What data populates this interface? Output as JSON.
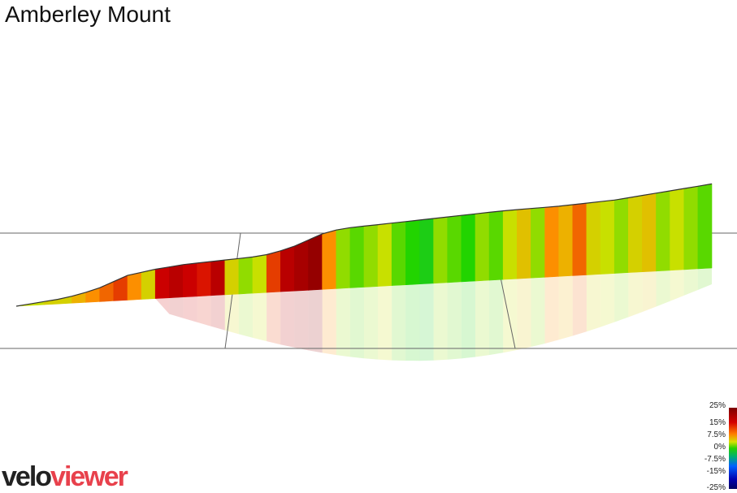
{
  "title": "Amberley Mount",
  "brand": {
    "part1": "velo",
    "part2": "viewer",
    "color1": "#222222",
    "color2": "#e8414c"
  },
  "legend": {
    "labels": [
      "25%",
      "15%",
      "7.5%",
      "0%",
      "-7.5%",
      "-15%",
      "-25%"
    ]
  },
  "chart_data": {
    "type": "area",
    "view": "3d-elevation-profile",
    "title": "Amberley Mount",
    "xlabel": "",
    "ylabel": "",
    "grid": false,
    "colorscale": {
      "stops": [
        {
          "gradient_pct": 25,
          "color": "#7a0000"
        },
        {
          "gradient_pct": 15,
          "color": "#d40000"
        },
        {
          "gradient_pct": 7.5,
          "color": "#ff9900"
        },
        {
          "gradient_pct": 3,
          "color": "#c8e000"
        },
        {
          "gradient_pct": 0,
          "color": "#22d400"
        },
        {
          "gradient_pct": -7.5,
          "color": "#00a0a0"
        },
        {
          "gradient_pct": -15,
          "color": "#0040ff"
        },
        {
          "gradient_pct": -25,
          "color": "#000080"
        }
      ]
    },
    "x": [
      0,
      0.02,
      0.04,
      0.06,
      0.08,
      0.1,
      0.12,
      0.14,
      0.16,
      0.18,
      0.2,
      0.22,
      0.24,
      0.26,
      0.28,
      0.3,
      0.32,
      0.34,
      0.36,
      0.38,
      0.4,
      0.42,
      0.44,
      0.46,
      0.48,
      0.5,
      0.52,
      0.54,
      0.56,
      0.58,
      0.6,
      0.62,
      0.64,
      0.66,
      0.68,
      0.7,
      0.72,
      0.74,
      0.76,
      0.78,
      0.8,
      0.82,
      0.84,
      0.86,
      0.88,
      0.9,
      0.92,
      0.94,
      0.96,
      0.98,
      1.0
    ],
    "elevation": [
      0,
      2,
      4,
      6,
      9,
      13,
      18,
      25,
      32,
      35,
      38,
      40,
      42,
      43,
      44,
      45,
      46,
      47,
      49,
      53,
      58,
      65,
      72,
      76,
      78,
      79,
      80,
      81,
      82,
      83,
      84,
      85,
      86,
      87,
      88,
      89,
      89.5,
      90,
      90.5,
      91,
      92,
      93,
      94,
      95,
      97,
      99,
      101,
      103,
      105,
      107,
      109
    ],
    "gradient": [
      3,
      3,
      4,
      4,
      6,
      8,
      10,
      12,
      8,
      4,
      16,
      18,
      16,
      14,
      18,
      4,
      2,
      3,
      12,
      18,
      20,
      22,
      8,
      2,
      1,
      2,
      3,
      1,
      0,
      -1,
      2,
      1,
      0,
      2,
      1,
      3,
      5,
      2,
      8,
      6,
      10,
      4,
      3,
      2,
      4,
      5,
      2,
      3,
      2,
      1,
      1
    ]
  }
}
